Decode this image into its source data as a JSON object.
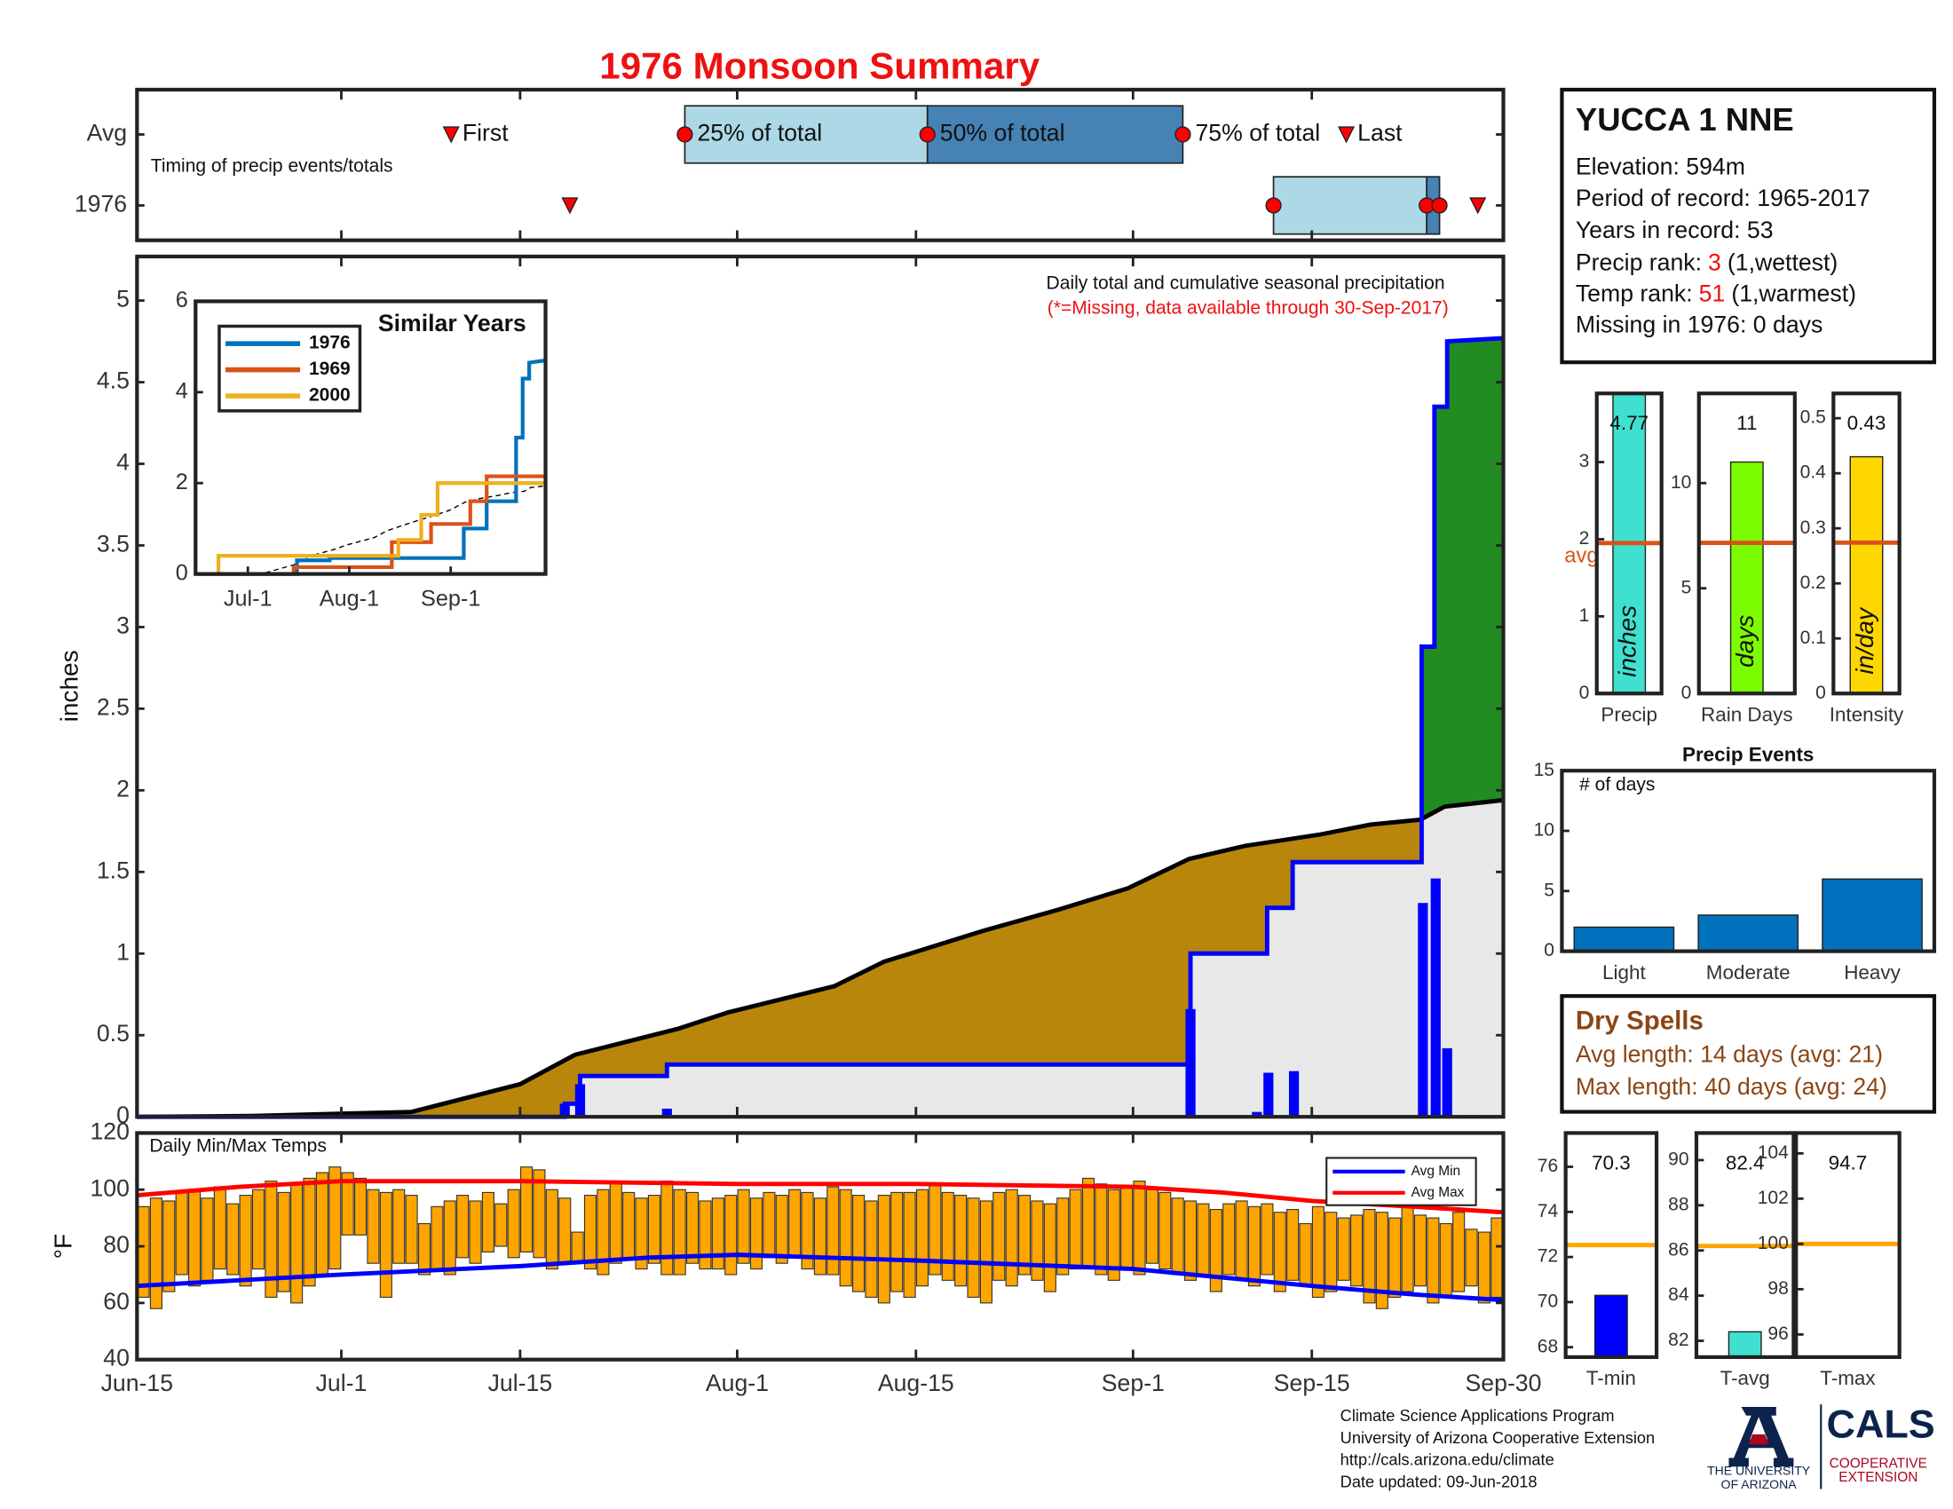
{
  "title": "1976 Monsoon Summary",
  "station": {
    "name": "YUCCA 1 NNE",
    "lines": [
      "Elevation: 594m",
      "Period of record: 1965-2017",
      "Years in record: 53"
    ],
    "ranks": [
      {
        "label": "Precip rank:",
        "value": 3,
        "note": "(1,wettest)"
      },
      {
        "label": "Temp rank:",
        "value": 51,
        "note": "(1,warmest)"
      }
    ],
    "missing": "Missing in 1976: 0 days"
  },
  "dry_spells": {
    "title": "Dry Spells",
    "lines": [
      "Avg length: 14 days (avg: 21)",
      "Max length: 40 days (avg: 24)"
    ]
  },
  "footer": {
    "lines": [
      "Climate Science Applications Program",
      "University of Arizona Cooperative Extension",
      "http://cals.arizona.edu/climate",
      "Date updated: 09-Jun-2018"
    ],
    "university": [
      "THE UNIVERSITY",
      "OF ARIZONA"
    ],
    "cals": "CALS",
    "extension": [
      "COOPERATIVE",
      "EXTENSION"
    ]
  },
  "chart_data": [
    {
      "type": "timing",
      "text": "Timing of precip events/totals",
      "categories": [
        "Avg",
        "1976"
      ],
      "xlim": [
        0,
        107
      ],
      "colors": [
        "#add8e6",
        "#4682b4"
      ],
      "marker_color": "#ff0000",
      "markers": [
        {
          "label": "First",
          "shape": "triangle",
          "values": [
            24.6,
            33.9
          ]
        },
        {
          "label": "25% of total",
          "shape": "circle",
          "values": [
            42.9,
            89
          ]
        },
        {
          "label": "50% of total",
          "shape": "circle",
          "values": [
            61.9,
            101
          ]
        },
        {
          "label": "75% of total",
          "shape": "circle",
          "values": [
            81.9,
            102
          ]
        },
        {
          "label": "Last",
          "shape": "triangle",
          "values": [
            94.7,
            105
          ]
        }
      ]
    },
    {
      "type": "cumulative",
      "ylabel": "inches",
      "text": [
        "Daily total and cumulative seasonal precipitation",
        "(*=Missing, data available through 30-Sep-2017)"
      ],
      "xlim": [
        0,
        107
      ],
      "ylim": [
        0,
        5.27
      ],
      "yticks": [
        0,
        0.5,
        1,
        1.5,
        2,
        2.5,
        3,
        3.5,
        4,
        4.5,
        5
      ],
      "colors": {
        "below": "#b8860b",
        "above": "#228b22",
        "base": "#e8e8e8"
      },
      "average": {
        "color": "#000000",
        "x": [
          0,
          9,
          21.5,
          30,
          34.3,
          42.4,
          46.3,
          54.6,
          58.5,
          66.3,
          72.2,
          77.6,
          82.4,
          86.8,
          92.7,
          96.6,
          100.5,
          102.4,
          107
        ],
        "values": [
          0,
          0.005,
          0.03,
          0.2,
          0.38,
          0.54,
          0.64,
          0.8,
          0.95,
          1.14,
          1.27,
          1.4,
          1.58,
          1.66,
          1.73,
          1.79,
          1.82,
          1.9,
          1.94
        ]
      },
      "observed": {
        "color": "#0000ff",
        "x": [
          0,
          33.5,
          33.5,
          34.7,
          34.7,
          41.5,
          41.5,
          82.5,
          82.5,
          88.5,
          88.5,
          90.5,
          90.5,
          100.6,
          100.6,
          101.6,
          101.6,
          102.6,
          102.6,
          107
        ],
        "values": [
          0,
          0,
          0.08,
          0.08,
          0.25,
          0.25,
          0.32,
          0.32,
          1.0,
          1.0,
          1.28,
          1.28,
          1.56,
          1.56,
          2.88,
          2.88,
          4.35,
          4.35,
          4.75,
          4.77
        ]
      },
      "daily": {
        "color": "#0000ff",
        "x": [
          33.5,
          34.7,
          41.5,
          82.5,
          87.7,
          88.6,
          90.6,
          100.7,
          101.7,
          102.6,
          104.6
        ],
        "values": [
          0.08,
          0.2,
          0.05,
          0.66,
          0.03,
          0.27,
          0.28,
          1.31,
          1.46,
          0.42,
          0.01
        ]
      }
    },
    {
      "type": "line",
      "title": "Similar Years",
      "xlim": [
        0,
        107
      ],
      "ylim": [
        0,
        6
      ],
      "yticks": [
        0,
        2,
        4,
        6
      ],
      "xticks": [
        {
          "value": 16,
          "label": "Jul-1"
        },
        {
          "value": 47,
          "label": "Aug-1"
        },
        {
          "value": 78,
          "label": "Sep-1"
        }
      ],
      "series": [
        {
          "name": "1976",
          "color": "#0072bd",
          "x": [
            0,
            31,
            31,
            41,
            41,
            82,
            82,
            89,
            89,
            98,
            98,
            100,
            100,
            102,
            102,
            107
          ],
          "values": [
            0,
            0,
            0.3,
            0.3,
            0.35,
            0.35,
            1.0,
            1.0,
            1.6,
            1.6,
            3.0,
            3.0,
            4.3,
            4.3,
            4.65,
            4.7
          ]
        },
        {
          "name": "1969",
          "color": "#d95319",
          "x": [
            0,
            30,
            30,
            60,
            60,
            72,
            72,
            84,
            84,
            89,
            89,
            107
          ],
          "values": [
            0,
            0,
            0.15,
            0.15,
            0.7,
            0.7,
            1.1,
            1.1,
            1.6,
            1.6,
            2.15,
            2.15
          ]
        },
        {
          "name": "2000",
          "color": "#edb120",
          "x": [
            0,
            7,
            7,
            62,
            62,
            69,
            69,
            74,
            74,
            107
          ],
          "values": [
            0,
            0,
            0.4,
            0.4,
            0.75,
            0.75,
            1.3,
            1.3,
            2.0,
            2.0
          ]
        }
      ]
    },
    {
      "type": "range_bar",
      "title": "Daily Min/Max Temps",
      "ylabel": "°F",
      "color": "#ffa500",
      "xlim": [
        0,
        107
      ],
      "ylim": [
        40,
        120
      ],
      "yticks": [
        40,
        60,
        80,
        100,
        120
      ],
      "xticks": [
        {
          "value": 0,
          "label": "Jun-15"
        },
        {
          "value": 16,
          "label": "Jul-1"
        },
        {
          "value": 30,
          "label": "Jul-15"
        },
        {
          "value": 47,
          "label": "Aug-1"
        },
        {
          "value": 61,
          "label": "Aug-15"
        },
        {
          "value": 78,
          "label": "Sep-1"
        },
        {
          "value": 92,
          "label": "Sep-15"
        },
        {
          "value": 107,
          "label": "Sep-30"
        }
      ],
      "max": [
        94,
        97,
        96,
        99,
        100,
        97,
        101,
        95,
        98,
        100,
        103,
        99,
        102,
        104,
        106,
        108,
        106,
        104,
        100,
        99,
        100,
        98,
        88,
        94,
        96,
        98,
        96,
        99,
        95,
        100,
        108,
        107,
        100,
        97,
        85,
        98,
        100,
        102,
        99,
        97,
        98,
        103,
        100,
        99,
        96,
        97,
        98,
        100,
        97,
        99,
        98,
        100,
        99,
        97,
        101,
        100,
        98,
        96,
        98,
        99,
        99,
        100,
        102,
        99,
        98,
        97,
        96,
        99,
        100,
        98,
        96,
        95,
        97,
        100,
        104,
        102,
        100,
        101,
        103,
        100,
        99,
        97,
        96,
        95,
        93,
        95,
        96,
        94,
        95,
        92,
        93,
        88,
        94,
        92,
        90,
        91,
        93,
        92,
        90,
        94,
        91,
        90,
        88,
        92,
        86,
        85,
        90
      ],
      "min": [
        62,
        58,
        64,
        70,
        66,
        68,
        72,
        70,
        66,
        72,
        62,
        64,
        60,
        66,
        70,
        72,
        84,
        84,
        74,
        62,
        74,
        74,
        70,
        72,
        70,
        76,
        74,
        78,
        80,
        76,
        78,
        76,
        72,
        74,
        74,
        72,
        70,
        74,
        76,
        72,
        74,
        70,
        70,
        74,
        72,
        72,
        70,
        74,
        72,
        76,
        74,
        76,
        72,
        70,
        70,
        66,
        64,
        62,
        60,
        64,
        62,
        66,
        70,
        68,
        66,
        62,
        60,
        68,
        66,
        70,
        68,
        64,
        70,
        72,
        72,
        70,
        68,
        72,
        70,
        74,
        72,
        70,
        68,
        70,
        64,
        70,
        68,
        66,
        70,
        64,
        68,
        66,
        62,
        64,
        68,
        66,
        60,
        58,
        62,
        64,
        66,
        60,
        62,
        64,
        66,
        60,
        62
      ],
      "series": [
        {
          "name": "Avg Min",
          "color": "#0000ff",
          "x": [
            0,
            8,
            16,
            30,
            40,
            47,
            61,
            78,
            85,
            92,
            100,
            107
          ],
          "values": [
            66,
            68,
            70,
            73,
            76,
            77,
            75,
            72,
            69,
            66,
            63,
            61
          ]
        },
        {
          "name": "Avg Max",
          "color": "#ff0000",
          "x": [
            0,
            8,
            16,
            30,
            47,
            61,
            78,
            85,
            92,
            100,
            107
          ],
          "values": [
            98,
            101,
            103,
            103,
            102,
            102,
            101,
            99,
            96,
            94,
            92
          ]
        }
      ]
    },
    {
      "type": "stat_bar",
      "label": "Precip",
      "unit_label": "inches",
      "value": 4.77,
      "avg": 1.95,
      "avg_label": "avg",
      "color": "#40e0d0",
      "avg_color": "#d95319",
      "ylim": [
        0,
        3.89
      ],
      "yticks": [
        0,
        1,
        2,
        3
      ]
    },
    {
      "type": "stat_bar",
      "label": "Rain Days",
      "unit_label": "days",
      "value": 11,
      "avg": 7.16,
      "color": "#7cfc00",
      "avg_color": "#d95319",
      "ylim": [
        0,
        14.26
      ],
      "yticks": [
        0,
        5,
        10
      ]
    },
    {
      "type": "stat_bar",
      "label": "Intensity",
      "unit_label": "in/day",
      "value": 0.43,
      "avg": 0.274,
      "color": "#ffd700",
      "avg_color": "#d95319",
      "ylim": [
        0,
        0.545
      ],
      "yticks": [
        0,
        0.1,
        0.2,
        0.3,
        0.4,
        0.5
      ]
    },
    {
      "type": "bar",
      "title": "Precip Events",
      "ylabel": "# of days",
      "categories": [
        "Light",
        "Moderate",
        "Heavy"
      ],
      "values": [
        2,
        3,
        6
      ],
      "color": "#0072bd",
      "ylim": [
        0,
        15
      ],
      "yticks": [
        0,
        5,
        10,
        15
      ]
    },
    {
      "type": "stat_bar",
      "label": "T-min",
      "value": 70.3,
      "avg": 72.53,
      "color": "#0000ff",
      "avg_color": "#ffa500",
      "ylim": [
        67.56,
        77.5
      ],
      "yticks": [
        68,
        70,
        72,
        74,
        76
      ]
    },
    {
      "type": "stat_bar",
      "label": "T-avg",
      "value": 82.4,
      "avg": 86.2,
      "color": "#40e0d0",
      "avg_color": "#ffa500",
      "ylim": [
        81.28,
        91.2
      ],
      "yticks": [
        82,
        84,
        86,
        88,
        90
      ]
    },
    {
      "type": "stat_bar",
      "label": "T-max",
      "value": 94.7,
      "avg": 100,
      "color": "#ff0000",
      "avg_color": "#ffa500",
      "ylim": [
        95,
        104.9
      ],
      "yticks": [
        96,
        98,
        100,
        102,
        104
      ]
    }
  ]
}
